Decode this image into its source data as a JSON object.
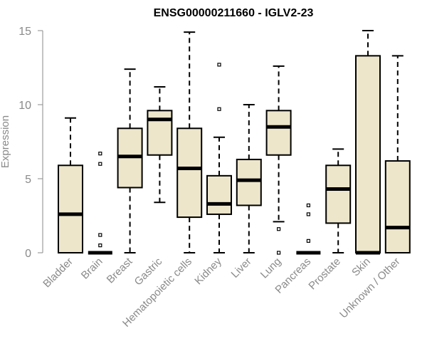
{
  "chart_data": {
    "type": "boxplot",
    "title": "ENSG00000211660 - IGLV2-23",
    "xlabel": "",
    "ylabel": "Expression",
    "ylim": [
      0,
      15
    ],
    "yticks": [
      0,
      5,
      10,
      15
    ],
    "grid": false,
    "box_fill": "#ede6cb",
    "box_stroke": "#000000",
    "axis_color": "#8a8a8a",
    "categories": [
      "Bladder",
      "Brain",
      "Breast",
      "Gastric",
      "Hematopoietic cells",
      "Kidney",
      "Liver",
      "Lung",
      "Pancreas",
      "Prostate",
      "Skin",
      "Unknown / Other"
    ],
    "boxes": [
      {
        "min": 0,
        "q1": 0,
        "median": 2.6,
        "q3": 5.9,
        "max": 9.1,
        "outliers": []
      },
      {
        "min": 0,
        "q1": 0,
        "median": 0,
        "q3": 0,
        "max": 0,
        "outliers": [
          0.5,
          1.2,
          6.0,
          6.7
        ]
      },
      {
        "min": 0,
        "q1": 4.4,
        "median": 6.5,
        "q3": 8.4,
        "max": 12.4,
        "outliers": []
      },
      {
        "min": 3.4,
        "q1": 6.6,
        "median": 9.0,
        "q3": 9.6,
        "max": 11.2,
        "outliers": []
      },
      {
        "min": 0,
        "q1": 2.4,
        "median": 5.7,
        "q3": 8.4,
        "max": 14.9,
        "outliers": []
      },
      {
        "min": 0,
        "q1": 2.6,
        "median": 3.3,
        "q3": 5.2,
        "max": 7.8,
        "outliers": [
          9.7,
          12.7
        ]
      },
      {
        "min": 0,
        "q1": 3.2,
        "median": 4.9,
        "q3": 6.3,
        "max": 10.0,
        "outliers": []
      },
      {
        "min": 2.1,
        "q1": 6.6,
        "median": 8.5,
        "q3": 9.6,
        "max": 12.6,
        "outliers": [
          0,
          1.6
        ]
      },
      {
        "min": 0,
        "q1": 0,
        "median": 0,
        "q3": 0,
        "max": 0,
        "outliers": [
          0.8,
          2.6,
          3.2
        ]
      },
      {
        "min": 0,
        "q1": 2.0,
        "median": 4.3,
        "q3": 5.9,
        "max": 7.0,
        "outliers": []
      },
      {
        "min": 0,
        "q1": 0,
        "median": 0,
        "q3": 13.3,
        "max": 15.0,
        "outliers": []
      },
      {
        "min": 0,
        "q1": 0,
        "median": 1.7,
        "q3": 6.2,
        "max": 13.3,
        "outliers": []
      }
    ]
  }
}
